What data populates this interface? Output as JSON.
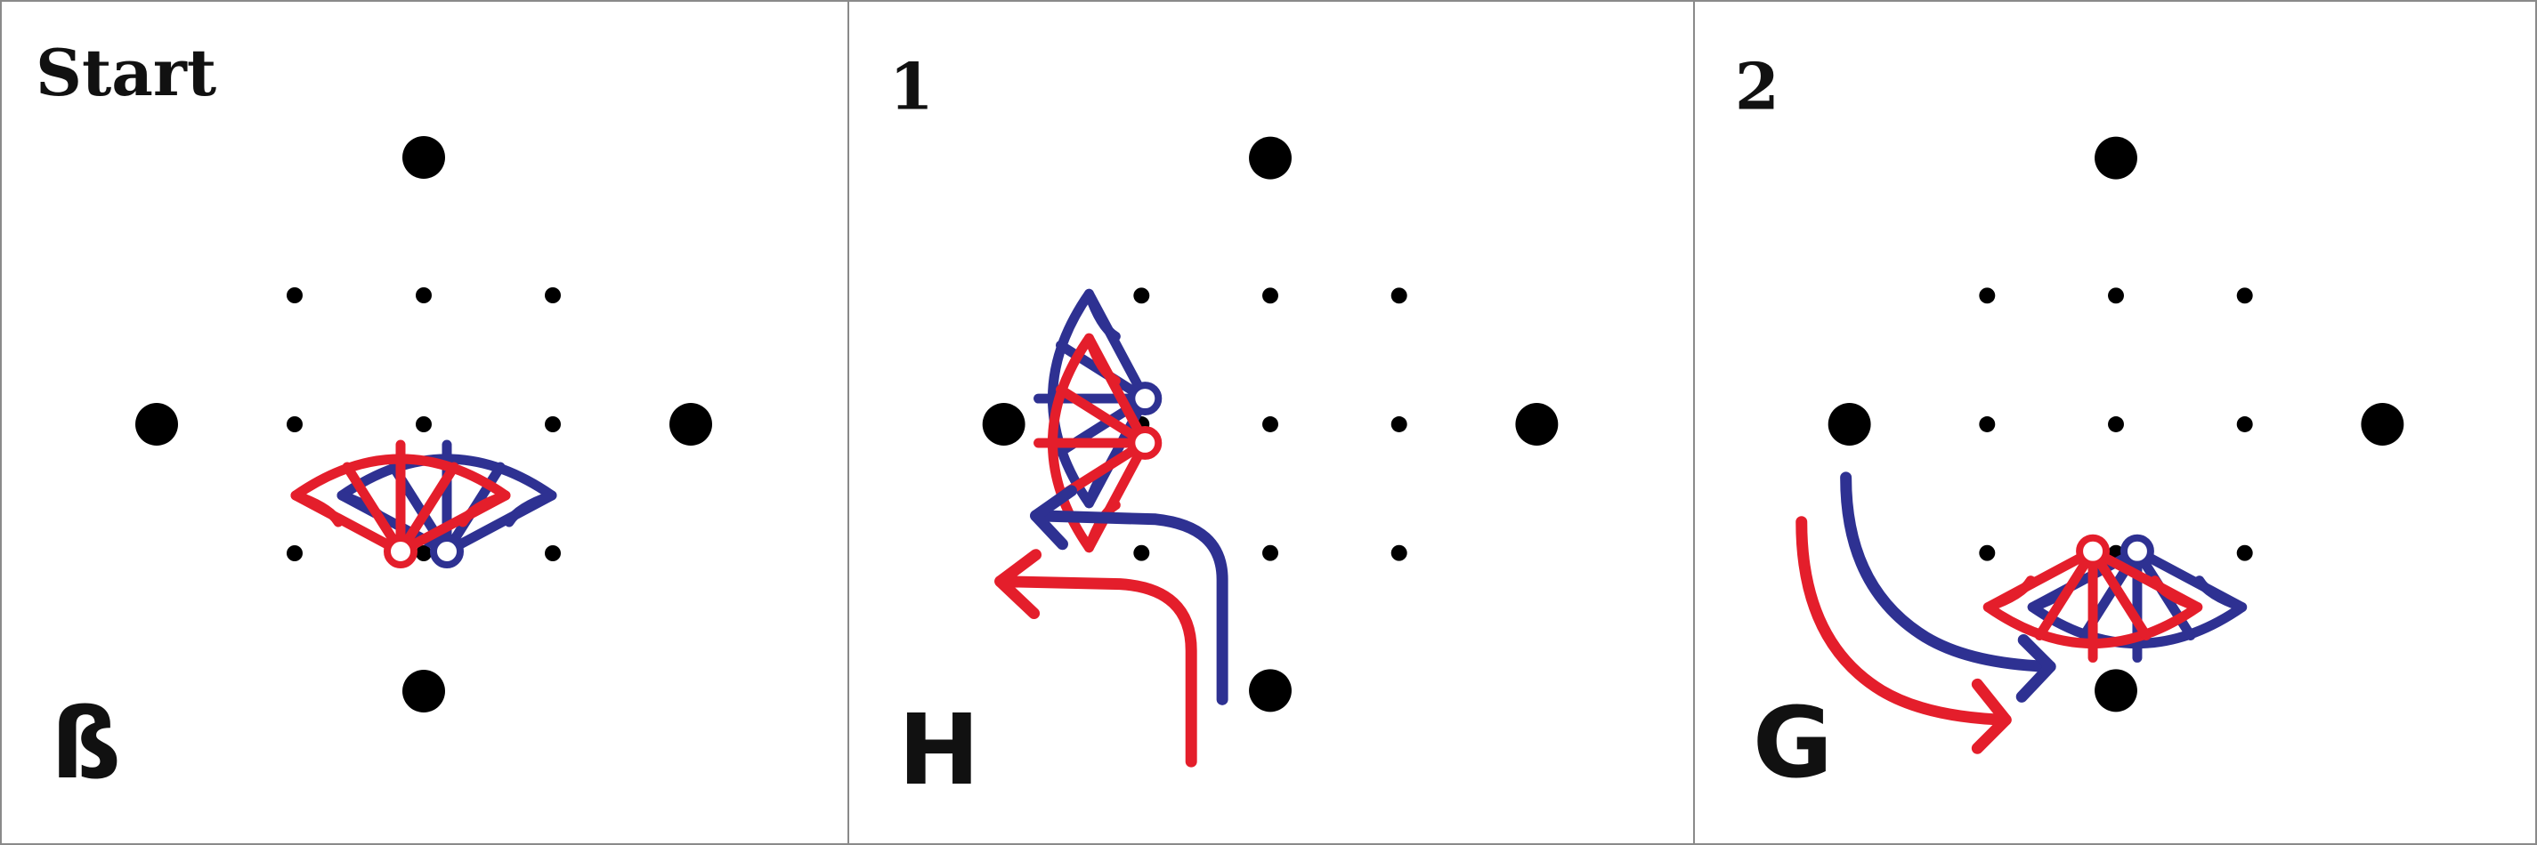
{
  "panels": [
    {
      "title": "Start",
      "move": "ß"
    },
    {
      "title": "1",
      "move": "H"
    },
    {
      "title": "2",
      "move": "G"
    }
  ],
  "colors": {
    "red": "#e41e2b",
    "blue": "#2e3192",
    "dot": "#000000",
    "border": "#8a8a8a"
  }
}
